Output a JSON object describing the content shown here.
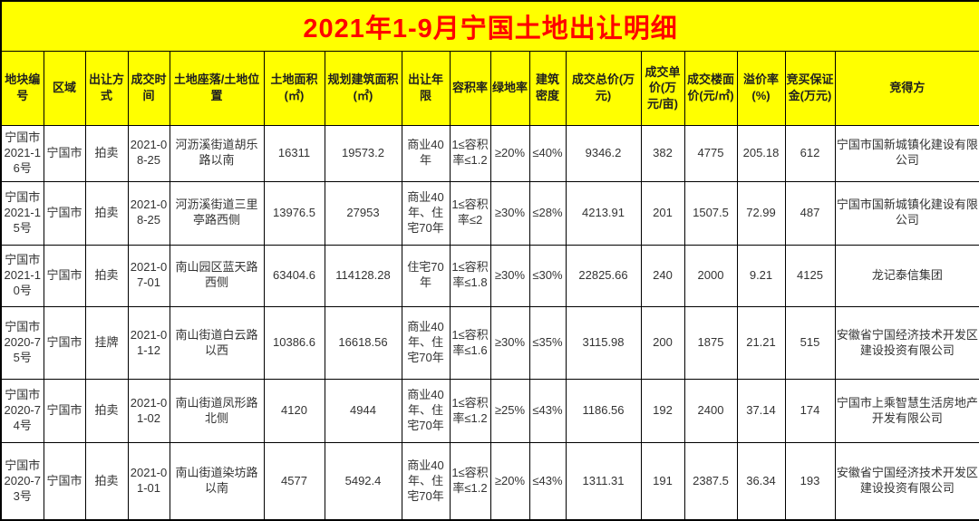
{
  "title": "2021年1-9月宁国土地出让明细",
  "colors": {
    "header_bg": "#ffff00",
    "title_text": "#ff0000",
    "border": "#000000",
    "cell_bg": "#ffffff",
    "cell_text": "#333333"
  },
  "table": {
    "columns": [
      {
        "key": "plot-id",
        "label": "地块编号"
      },
      {
        "key": "district",
        "label": "区域"
      },
      {
        "key": "sale-method",
        "label": "出让方式"
      },
      {
        "key": "deal-date",
        "label": "成交时间"
      },
      {
        "key": "location",
        "label": "土地座落/土地位置"
      },
      {
        "key": "land-area",
        "label": "土地面积(㎡)"
      },
      {
        "key": "planned-building-area",
        "label": "规划建筑面积(㎡)"
      },
      {
        "key": "tenure",
        "label": "出让年限"
      },
      {
        "key": "plot-ratio",
        "label": "容积率"
      },
      {
        "key": "green-rate",
        "label": "绿地率"
      },
      {
        "key": "building-density",
        "label": "建筑密度"
      },
      {
        "key": "total-price",
        "label": "成交总价(万元)"
      },
      {
        "key": "unit-price",
        "label": "成交单价(万元/亩)"
      },
      {
        "key": "floor-price",
        "label": "成交楼面价(元/㎡)"
      },
      {
        "key": "premium-rate",
        "label": "溢价率(%)"
      },
      {
        "key": "deposit",
        "label": "竞买保证金(万元)"
      },
      {
        "key": "winner",
        "label": "竞得方"
      }
    ],
    "rows": [
      [
        "宁国市2021-16号",
        "宁国市",
        "拍卖",
        "2021-08-25",
        "河沥溪街道胡乐路以南",
        "16311",
        "19573.2",
        "商业40年",
        "1≤容积率≤1.2",
        "≥20%",
        "≤40%",
        "9346.2",
        "382",
        "4775",
        "205.18",
        "612",
        "宁国市国新城镇化建设有限公司"
      ],
      [
        "宁国市2021-15号",
        "宁国市",
        "拍卖",
        "2021-08-25",
        "河沥溪街道三里亭路西侧",
        "13976.5",
        "27953",
        "商业40年、住宅70年",
        "1≤容积率≤2",
        "≥30%",
        "≤28%",
        "4213.91",
        "201",
        "1507.5",
        "72.99",
        "487",
        "宁国市国新城镇化建设有限公司"
      ],
      [
        "宁国市2021-10号",
        "宁国市",
        "拍卖",
        "2021-07-01",
        "南山园区蓝天路西侧",
        "63404.6",
        "114128.28",
        "住宅70年",
        "1≤容积率≤1.8",
        "≥30%",
        "≤30%",
        "22825.66",
        "240",
        "2000",
        "9.21",
        "4125",
        "龙记泰信集团"
      ],
      [
        "宁国市2020-75号",
        "宁国市",
        "挂牌",
        "2021-01-12",
        "南山街道白云路以西",
        "10386.6",
        "16618.56",
        "商业40年、住宅70年",
        "1≤容积率≤1.6",
        "≥30%",
        "≤35%",
        "3115.98",
        "200",
        "1875",
        "21.21",
        "515",
        "安徽省宁国经济技术开发区建设投资有限公司"
      ],
      [
        "宁国市2020-74号",
        "宁国市",
        "拍卖",
        "2021-01-02",
        "南山街道凤形路北侧",
        "4120",
        "4944",
        "商业40年、住宅70年",
        "1≤容积率≤1.2",
        "≥25%",
        "≤43%",
        "1186.56",
        "192",
        "2400",
        "37.14",
        "174",
        "宁国市上乘智慧生活房地产开发有限公司"
      ],
      [
        "宁国市2020-73号",
        "宁国市",
        "拍卖",
        "2021-01-01",
        "南山街道染坊路以南",
        "4577",
        "5492.4",
        "商业40年、住宅70年",
        "1≤容积率≤1.2",
        "≥20%",
        "≤43%",
        "1311.31",
        "191",
        "2387.5",
        "36.34",
        "193",
        "安徽省宁国经济技术开发区建设投资有限公司"
      ]
    ]
  }
}
